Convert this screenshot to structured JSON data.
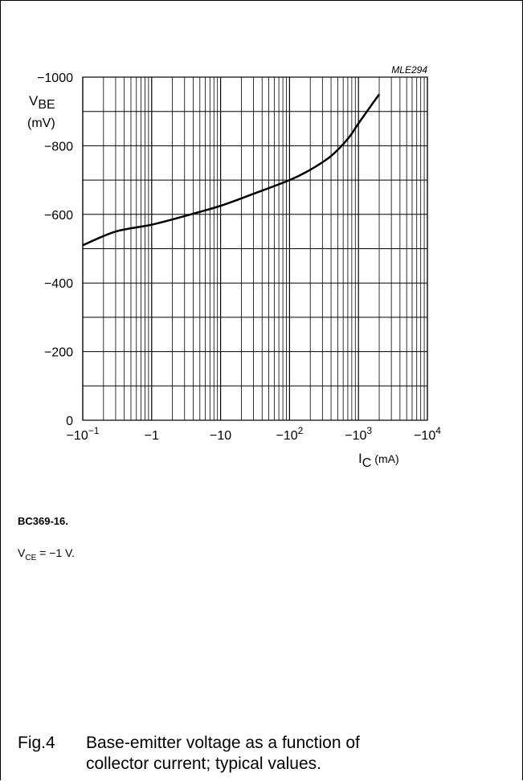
{
  "chart_data": {
    "type": "line",
    "code": "MLE294",
    "ylabel_main": "V",
    "ylabel_sub": "BE",
    "ylabel_unit": "(mV)",
    "xlabel_main": "I",
    "xlabel_sub": "C",
    "xlabel_unit": "(mA)",
    "x_scale": "log",
    "xlim": [
      -0.1,
      -10000
    ],
    "ylim": [
      0,
      -1000
    ],
    "grid": true,
    "yticks": [
      {
        "value": 0,
        "label": "0"
      },
      {
        "value": -200,
        "label": "−200"
      },
      {
        "value": -400,
        "label": "−400"
      },
      {
        "value": -600,
        "label": "−600"
      },
      {
        "value": -800,
        "label": "−800"
      },
      {
        "value": -1000,
        "label": "−1000"
      }
    ],
    "xticks": [
      {
        "value": -0.1,
        "base": "−10",
        "exp": "−1"
      },
      {
        "value": -1,
        "base": "−1",
        "exp": ""
      },
      {
        "value": -10,
        "base": "−10",
        "exp": ""
      },
      {
        "value": -100,
        "base": "−10",
        "exp": "2"
      },
      {
        "value": -1000,
        "base": "−10",
        "exp": "3"
      },
      {
        "value": -10000,
        "base": "−10",
        "exp": "4"
      }
    ],
    "series": [
      {
        "x": [
          -0.1,
          -0.3,
          -1,
          -3,
          -10,
          -30,
          -100,
          -200,
          -400,
          -700,
          -1000,
          -1500,
          -2000
        ],
        "y": [
          -510,
          -550,
          -570,
          -595,
          -625,
          -660,
          -700,
          -730,
          -770,
          -820,
          -865,
          -915,
          -950
        ]
      }
    ]
  },
  "device": "BC369-16.",
  "condition": {
    "main": "V",
    "sub": "CE",
    "rest": " = −1 V."
  },
  "caption": {
    "number": "Fig.4",
    "text": "Base-emitter voltage as a function of collector current; typical values."
  }
}
